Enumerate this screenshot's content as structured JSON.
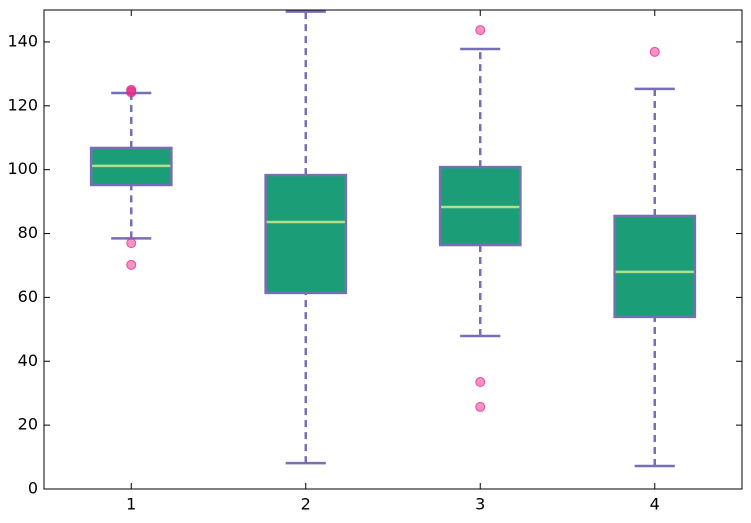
{
  "chart_data": {
    "type": "box",
    "categories": [
      "1",
      "2",
      "3",
      "4"
    ],
    "boxes": [
      {
        "whislo": 78.5,
        "q1": 95.2,
        "med": 101.2,
        "q3": 106.8,
        "whishi": 124.0,
        "fliers": [
          70.2,
          77.0,
          124.2,
          124.6,
          125.0
        ]
      },
      {
        "whislo": 8.1,
        "q1": 61.4,
        "med": 83.6,
        "q3": 98.3,
        "whishi": 149.5,
        "fliers": []
      },
      {
        "whislo": 47.9,
        "q1": 76.4,
        "med": 88.3,
        "q3": 100.8,
        "whishi": 137.8,
        "fliers": [
          25.7,
          33.5,
          143.7
        ]
      },
      {
        "whislo": 7.2,
        "q1": 53.9,
        "med": 68.0,
        "q3": 85.5,
        "whishi": 125.3,
        "fliers": [
          136.9
        ]
      }
    ],
    "box_color": "#1b9e77",
    "edge_color": "#7570b3",
    "median_color": "#b2df8a",
    "flier_color": "#e7298a",
    "ylim": [
      0,
      150
    ],
    "yticks": [
      0,
      20,
      40,
      60,
      80,
      100,
      120,
      140
    ],
    "grid": false
  }
}
